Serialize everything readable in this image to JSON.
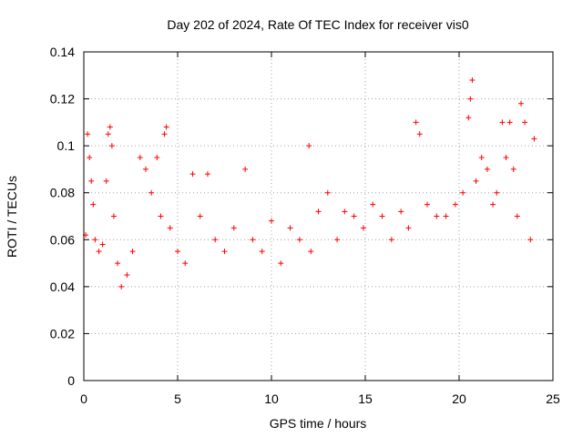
{
  "chart_data": {
    "type": "scatter",
    "title": "Day 202 of 2024, Rate Of TEC Index for receiver vis0",
    "xlabel": "GPS time / hours",
    "ylabel": "ROTI / TECUs",
    "xlim": [
      0,
      25
    ],
    "ylim": [
      0,
      0.14
    ],
    "xticks": [
      "0",
      "5",
      "10",
      "15",
      "20",
      "25"
    ],
    "yticks": [
      "0",
      "0.02",
      "0.04",
      "0.06",
      "0.08",
      "0.1",
      "0.12",
      "0.14"
    ],
    "grid": true,
    "marker": "+",
    "series_color": "#ff0000",
    "series": [
      {
        "x": [
          0.1,
          0.2,
          0.3,
          0.4,
          0.5,
          0.6,
          0.8,
          1.0,
          1.2,
          1.3,
          1.4,
          1.5,
          1.6,
          1.8,
          2.0,
          2.3,
          2.6,
          3.0,
          3.3,
          3.6,
          3.9,
          4.1,
          4.3,
          4.4,
          4.6,
          5.0,
          5.4,
          5.8,
          6.2,
          6.6,
          7.0,
          7.5,
          8.0,
          8.6,
          9.0,
          9.5,
          10.0,
          10.5,
          11.0,
          11.5,
          12.0,
          12.1,
          12.5,
          13.0,
          13.5,
          13.9,
          14.4,
          14.9,
          15.4,
          15.9,
          16.4,
          16.9,
          17.3,
          17.7,
          17.9,
          18.3,
          18.8,
          19.3,
          19.8,
          20.2,
          20.5,
          20.6,
          20.7,
          20.9,
          21.2,
          21.5,
          21.8,
          22.0,
          22.3,
          22.5,
          22.7,
          22.9,
          23.1,
          23.3,
          23.5,
          23.8,
          24.0
        ],
        "y": [
          0.062,
          0.105,
          0.095,
          0.085,
          0.075,
          0.06,
          0.055,
          0.058,
          0.085,
          0.105,
          0.108,
          0.1,
          0.07,
          0.05,
          0.04,
          0.045,
          0.055,
          0.095,
          0.09,
          0.08,
          0.095,
          0.07,
          0.105,
          0.108,
          0.065,
          0.055,
          0.05,
          0.088,
          0.07,
          0.088,
          0.06,
          0.055,
          0.065,
          0.09,
          0.06,
          0.055,
          0.068,
          0.05,
          0.065,
          0.06,
          0.1,
          0.055,
          0.072,
          0.08,
          0.06,
          0.072,
          0.07,
          0.065,
          0.075,
          0.07,
          0.06,
          0.072,
          0.065,
          0.11,
          0.105,
          0.075,
          0.07,
          0.07,
          0.075,
          0.08,
          0.112,
          0.12,
          0.128,
          0.085,
          0.095,
          0.09,
          0.075,
          0.08,
          0.11,
          0.095,
          0.11,
          0.09,
          0.07,
          0.118,
          0.11,
          0.06,
          0.103
        ]
      }
    ]
  }
}
